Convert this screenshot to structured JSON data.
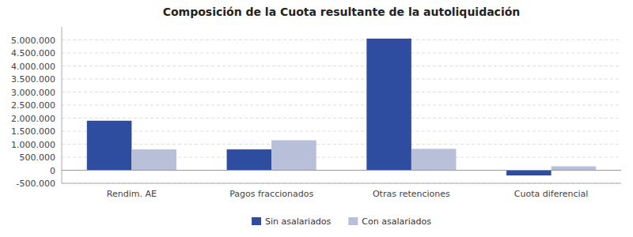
{
  "chart_data": {
    "type": "bar",
    "title": "Composición de la Cuota resultante de la autoliquidación",
    "categories": [
      "Rendim. AE",
      "Pagos fraccionados",
      "Otras retenciones",
      "Cuota diferencial"
    ],
    "series": [
      {
        "name": "Sin asalariados",
        "color": "#2E4DA0",
        "values": [
          1900000,
          800000,
          5050000,
          -200000
        ]
      },
      {
        "name": "Con asalariados",
        "color": "#B8BFD8",
        "values": [
          800000,
          1150000,
          820000,
          150000
        ]
      }
    ],
    "ylim": [
      -500000,
      5500000
    ],
    "yticks": [
      {
        "value": -500000,
        "label": "-500.000"
      },
      0,
      {
        "value": 500000,
        "label": "500.000"
      },
      {
        "value": 1000000,
        "label": "1.000.000"
      },
      {
        "value": 1500000,
        "label": "1.500.000"
      },
      {
        "value": 2000000,
        "label": "2.000.000"
      },
      {
        "value": 2500000,
        "label": "2.500.000"
      },
      {
        "value": 3000000,
        "label": "3.000.000"
      },
      {
        "value": 3500000,
        "label": "3.500.000"
      },
      {
        "value": 4000000,
        "label": "4.000.000"
      },
      {
        "value": 4500000,
        "label": "4.500.000"
      },
      {
        "value": 5000000,
        "label": "5.000.000"
      }
    ],
    "grid": true,
    "legend": "bottom"
  }
}
